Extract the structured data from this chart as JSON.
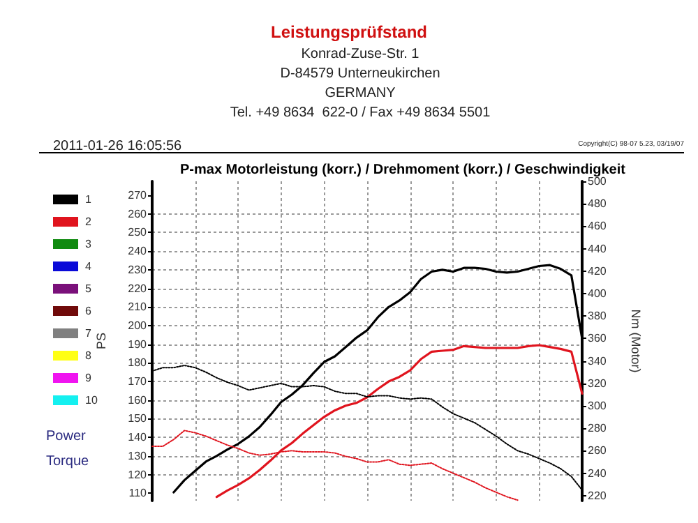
{
  "chart_data": {
    "type": "line",
    "title": "Leistungsprüfstand",
    "subtitle": "P-max Motorleistung (korr.) / Drehmoment (korr.) / Geschwindigkeit",
    "annotations": [
      "Konrad-Zuse-Str. 1",
      "D-84579 Unterneukirchen",
      "GERMANY",
      "Tel. +49 8634  622-0 / Fax +49 8634 5501",
      "2011-01-26 16:05:56",
      "Copyright(C) 98-07 5.23, 03/19/07",
      "Power",
      "Torque"
    ],
    "ylabel": "PS",
    "y2label": "Nm (Motor)",
    "categories": [
      null,
      null,
      null,
      null,
      null,
      null,
      null,
      null,
      null,
      null,
      null,
      null,
      null,
      null,
      null,
      null,
      null,
      null,
      null,
      null,
      null,
      null,
      null,
      null,
      null,
      null,
      null,
      null,
      null,
      null,
      null,
      null,
      null,
      null,
      null,
      null,
      null,
      null,
      null,
      null,
      null
    ],
    "ylim": [
      106,
      277.5
    ],
    "yticks": [
      110,
      120,
      130,
      140,
      150,
      160,
      170,
      180,
      190,
      200,
      210,
      220,
      230,
      240,
      250,
      260,
      270
    ],
    "y2lim": [
      215.5,
      500
    ],
    "y2ticks": [
      220,
      240,
      260,
      280,
      300,
      320,
      340,
      360,
      380,
      400,
      420,
      440,
      460,
      480,
      500
    ],
    "grid": true,
    "legend": "left",
    "marker": "none",
    "series": [
      {
        "name": "1",
        "color": "#000000",
        "line_style": "solid",
        "values": [
          null,
          null,
          110.5,
          117,
          122,
          127,
          130,
          133.5,
          136.5,
          140.5,
          145.5,
          152,
          159,
          163,
          168,
          174.5,
          180.5,
          183.5,
          188.5,
          193.5,
          197.5,
          204.5,
          210,
          213.5,
          218,
          225,
          229,
          230,
          229,
          231,
          231,
          230.5,
          229,
          228.5,
          229,
          230.5,
          232,
          232.5,
          230.5,
          227,
          193
        ]
      },
      {
        "name": "2",
        "color": "#e0141e",
        "line_style": "solid",
        "values": [
          null,
          null,
          null,
          null,
          null,
          null,
          108,
          111.5,
          114.5,
          118,
          122.5,
          127.5,
          133,
          137,
          142,
          146.5,
          151,
          154.5,
          157,
          158.5,
          161.5,
          166,
          170,
          172.5,
          176,
          182,
          186,
          186.5,
          187,
          189,
          188.5,
          188,
          188,
          188,
          188,
          189,
          189.5,
          188.5,
          187.5,
          186,
          163.5
        ]
      },
      {
        "name": "3",
        "color": "#108a10",
        "values": [
          null,
          null,
          null,
          null,
          null,
          null,
          null,
          null,
          null,
          null,
          null,
          null,
          null,
          null,
          null,
          null,
          null,
          null,
          null,
          null,
          null,
          null,
          null,
          null,
          null,
          null,
          null,
          null,
          null,
          null,
          null,
          null,
          null,
          null,
          null,
          null,
          null,
          null,
          null,
          null,
          null
        ]
      },
      {
        "name": "4",
        "color": "#0a0ad8",
        "values": [
          null,
          null,
          null,
          null,
          null,
          null,
          null,
          null,
          null,
          null,
          null,
          null,
          null,
          null,
          null,
          null,
          null,
          null,
          null,
          null,
          null,
          null,
          null,
          null,
          null,
          null,
          null,
          null,
          null,
          null,
          null,
          null,
          null,
          null,
          null,
          null,
          null,
          null,
          null,
          null,
          null
        ]
      },
      {
        "name": "5",
        "color": "#7a107a",
        "values": [
          null,
          null,
          null,
          null,
          null,
          null,
          null,
          null,
          null,
          null,
          null,
          null,
          null,
          null,
          null,
          null,
          null,
          null,
          null,
          null,
          null,
          null,
          null,
          null,
          null,
          null,
          null,
          null,
          null,
          null,
          null,
          null,
          null,
          null,
          null,
          null,
          null,
          null,
          null,
          null,
          null
        ]
      },
      {
        "name": "6",
        "color": "#700a0a",
        "values": [
          null,
          null,
          null,
          null,
          null,
          null,
          null,
          null,
          null,
          null,
          null,
          null,
          null,
          null,
          null,
          null,
          null,
          null,
          null,
          null,
          null,
          null,
          null,
          null,
          null,
          null,
          null,
          null,
          null,
          null,
          null,
          null,
          null,
          null,
          null,
          null,
          null,
          null,
          null,
          null,
          null
        ]
      },
      {
        "name": "7",
        "color": "#808080",
        "values": [
          null,
          null,
          null,
          null,
          null,
          null,
          null,
          null,
          null,
          null,
          null,
          null,
          null,
          null,
          null,
          null,
          null,
          null,
          null,
          null,
          null,
          null,
          null,
          null,
          null,
          null,
          null,
          null,
          null,
          null,
          null,
          null,
          null,
          null,
          null,
          null,
          null,
          null,
          null,
          null,
          null
        ]
      },
      {
        "name": "8",
        "color": "#ffff14",
        "values": [
          null,
          null,
          null,
          null,
          null,
          null,
          null,
          null,
          null,
          null,
          null,
          null,
          null,
          null,
          null,
          null,
          null,
          null,
          null,
          null,
          null,
          null,
          null,
          null,
          null,
          null,
          null,
          null,
          null,
          null,
          null,
          null,
          null,
          null,
          null,
          null,
          null,
          null,
          null,
          null,
          null
        ]
      },
      {
        "name": "9",
        "color": "#f014f0",
        "values": [
          null,
          null,
          null,
          null,
          null,
          null,
          null,
          null,
          null,
          null,
          null,
          null,
          null,
          null,
          null,
          null,
          null,
          null,
          null,
          null,
          null,
          null,
          null,
          null,
          null,
          null,
          null,
          null,
          null,
          null,
          null,
          null,
          null,
          null,
          null,
          null,
          null,
          null,
          null,
          null,
          null
        ]
      },
      {
        "name": "10",
        "color": "#14f0f0",
        "values": [
          null,
          null,
          null,
          null,
          null,
          null,
          null,
          null,
          null,
          null,
          null,
          null,
          null,
          null,
          null,
          null,
          null,
          null,
          null,
          null,
          null,
          null,
          null,
          null,
          null,
          null,
          null,
          null,
          null,
          null,
          null,
          null,
          null,
          null,
          null,
          null,
          null,
          null,
          null,
          null,
          null
        ]
      },
      {
        "color": "#000000",
        "line_style": "dotted",
        "axis": "y2",
        "values": [
          331,
          334,
          334,
          336,
          334,
          330,
          325,
          321,
          318,
          314,
          316,
          318,
          320,
          317,
          317,
          318,
          317,
          313,
          311,
          311,
          308,
          309,
          309,
          307,
          306,
          307,
          306,
          299,
          293,
          289,
          285,
          279,
          273,
          266,
          260,
          257,
          253,
          249,
          244,
          237,
          225
        ]
      },
      {
        "color": "#e0141e",
        "line_style": "dotted",
        "axis": "y2",
        "values": [
          264,
          264,
          270,
          278,
          276,
          273,
          269,
          265,
          262,
          258,
          256,
          257,
          259,
          260,
          259,
          259,
          259,
          258,
          255,
          253,
          250,
          250,
          252,
          248,
          247,
          248,
          249,
          244,
          240,
          236,
          232,
          227,
          223,
          219,
          216,
          null,
          null,
          null,
          null,
          null,
          null
        ]
      }
    ]
  }
}
